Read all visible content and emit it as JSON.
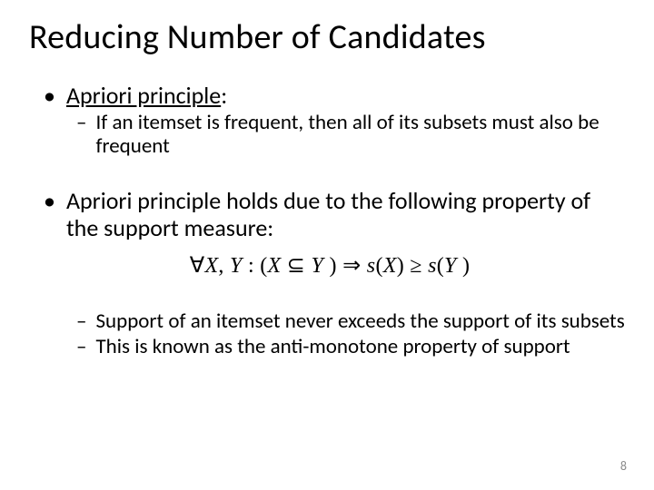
{
  "slide": {
    "title": "Reducing Number of Candidates",
    "bullets": [
      {
        "level": 1,
        "text_prefix": "Apriori principle",
        "text_suffix": ":",
        "underline_prefix": true
      },
      {
        "level": 2,
        "text": "If an itemset is frequent, then all of its subsets must also be frequent"
      },
      {
        "level": 1,
        "text": "Apriori principle holds due to the following property of the support measure:"
      },
      {
        "level": 2,
        "text": "Support of an itemset never exceeds the support of its subsets"
      },
      {
        "level": 2,
        "text": "This is known as the anti-monotone property of support"
      }
    ],
    "formula": "∀X, Y : (X ⊆ Y ) ⇒ s(X) ≥ s(Y )",
    "page_number": "8",
    "colors": {
      "background": "#ffffff",
      "text": "#000000",
      "page_num": "#8b8b8b"
    },
    "fontsize": {
      "title": 38,
      "level1": 26,
      "level2": 23,
      "formula": 24,
      "page_num": 14
    }
  }
}
